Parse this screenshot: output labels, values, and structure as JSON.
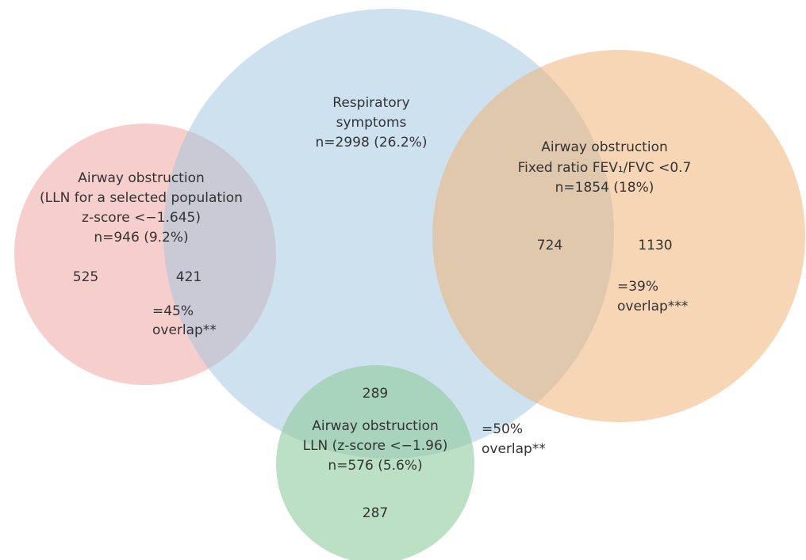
{
  "respiratory": {
    "lines": [
      "Respiratory",
      "symptoms"
    ],
    "n": "n=2998 (26.2%)"
  },
  "lln_selected": {
    "lines": [
      "Airway obstruction",
      "(LLN for a selected population",
      "z-score <−1.645)"
    ],
    "n": "n=946 (9.2%)",
    "only": "525",
    "shared": "421",
    "overlap": [
      "=45%",
      "overlap**"
    ]
  },
  "fixed_ratio": {
    "lines": [
      "Airway obstruction",
      "Fixed ratio FEV₁/FVC <0.7"
    ],
    "n": "n=1854 (18%)",
    "shared": "724",
    "only": "1130",
    "overlap": [
      "=39%",
      "overlap***"
    ]
  },
  "lln_196": {
    "shared": "289",
    "lines": [
      "Airway obstruction",
      "LLN (z-score <−1.96)"
    ],
    "n": "n=576 (5.6%)",
    "only": "287",
    "overlap": [
      "=50%",
      "overlap**"
    ]
  }
}
